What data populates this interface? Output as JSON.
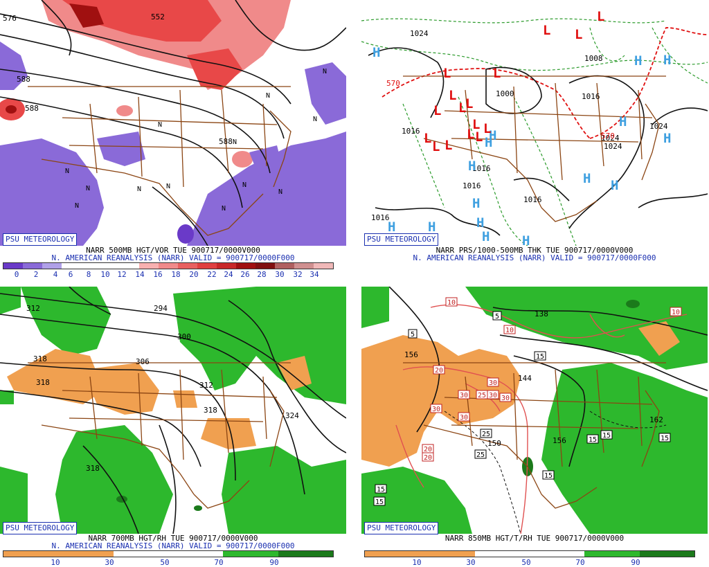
{
  "colors": {
    "brand": "#1a2fb0",
    "border": "#8b4513",
    "high": "#3fa0e0",
    "low": "#e01010",
    "moist": "#2db82d",
    "dry": "#f0a050",
    "vort_neg": "#8a6ad8",
    "vort_pos": "#e04040"
  },
  "panels": [
    {
      "id": "p1",
      "badge": "PSU METEOROLOGY",
      "title": "NARR 500MB HGT/VOR TUE 900717/0000V000",
      "subtitle": "N. AMERICAN REANALYSIS (NARR) VALID = 900717/0000F000",
      "scale": [
        "0",
        "2",
        "4",
        "6",
        "8",
        "10",
        "12",
        "14",
        "16",
        "18",
        "20",
        "22",
        "24",
        "26",
        "28",
        "30",
        "32",
        "34"
      ],
      "contour_labels": [
        "576",
        "552",
        "588",
        "588",
        "588"
      ],
      "n_labels": [
        "N",
        "N",
        "N",
        "N",
        "N",
        "N",
        "N",
        "N",
        "N",
        "N",
        "N",
        "N",
        "N"
      ]
    },
    {
      "id": "p2",
      "badge": "PSU METEOROLOGY",
      "title": "NARR PRS/1000-500MB THK TUE 900717/0000V000",
      "subtitle": "N. AMERICAN REANALYSIS (NARR) VALID = 900717/0000F000",
      "pressure_labels": [
        "1024",
        "1008",
        "1000",
        "1016",
        "1016",
        "1016",
        "1016",
        "1016",
        "1024",
        "1024",
        "1024",
        "1016"
      ],
      "thickness_labels": [
        "570",
        "570"
      ],
      "highs": [
        "H",
        "H",
        "H",
        "H",
        "H",
        "H",
        "H",
        "H",
        "H",
        "H",
        "H",
        "H",
        "H",
        "H",
        "H",
        "H"
      ],
      "lows": [
        "L",
        "L",
        "L",
        "L",
        "L",
        "L",
        "L",
        "L",
        "L",
        "L",
        "L",
        "L",
        "L",
        "L",
        "L",
        "L"
      ]
    },
    {
      "id": "p3",
      "badge": "PSU METEOROLOGY",
      "title": "NARR 700MB HGT/RH TUE 900717/0000V000",
      "subtitle": "N. AMERICAN REANALYSIS (NARR) VALID = 900717/0000F000",
      "scale": [
        "10",
        "30",
        "50",
        "70",
        "90"
      ],
      "contour_labels": [
        "312",
        "294",
        "300",
        "318",
        "318",
        "306",
        "312",
        "318",
        "324",
        "318"
      ]
    },
    {
      "id": "p4",
      "badge": "PSU METEOROLOGY",
      "title": "NARR 850MB HGT/T/RH TUE 900717/0000V000",
      "scale": [
        "10",
        "30",
        "50",
        "70",
        "90"
      ],
      "height_labels": [
        "156",
        "138",
        "150",
        "156",
        "162",
        "144"
      ],
      "temp_labels_red": [
        "10",
        "10",
        "10",
        "20",
        "30",
        "30",
        "30",
        "30",
        "30",
        "30",
        "20",
        "20",
        "25"
      ],
      "temp_labels_black": [
        "5",
        "5",
        "15",
        "15",
        "25",
        "25",
        "15",
        "15",
        "15",
        "15",
        "15"
      ]
    }
  ]
}
